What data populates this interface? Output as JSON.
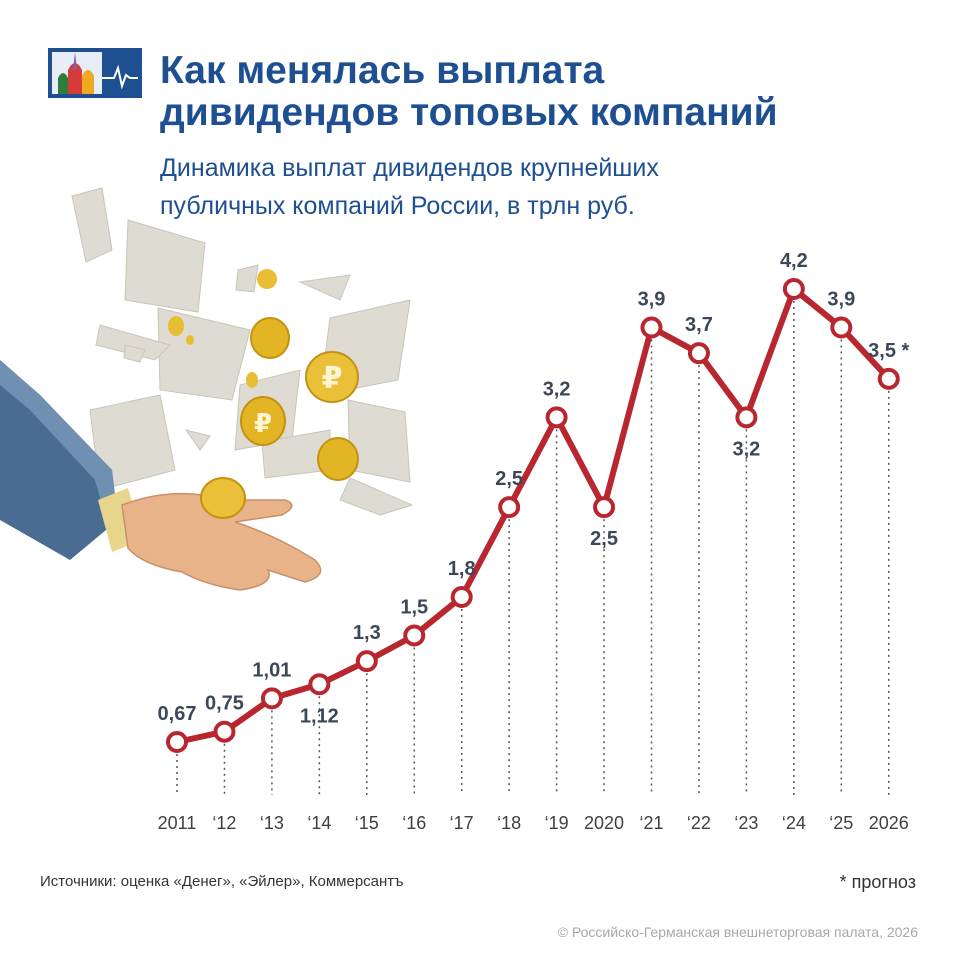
{
  "title": "Как менялась выплата\nдивидендов топовых компаний",
  "subtitle": "Динамика выплат дивидендов крупнейших\nпубличных компаний России, в трлн руб.",
  "source": "Источники: оценка «Денег», «Эйлер», Коммерсантъ",
  "footnote": "* прогноз",
  "copyright": "© Российско-Германская внешнеторговая палата, 2026",
  "colors": {
    "brand_blue": "#1d4f91",
    "line_red": "#b8272f",
    "label_gray": "#3c4858",
    "tick_gray": "#404040"
  },
  "chart_data": {
    "type": "line",
    "categories": [
      "2011",
      "‘12",
      "‘13",
      "‘14",
      "‘15",
      "‘16",
      "‘17",
      "‘18",
      "‘19",
      "2020",
      "‘21",
      "‘22",
      "‘23",
      "‘24",
      "‘25",
      "2026"
    ],
    "values": [
      0.67,
      0.75,
      1.01,
      1.12,
      1.3,
      1.5,
      1.8,
      2.5,
      3.2,
      2.5,
      3.9,
      3.7,
      3.2,
      4.2,
      3.9,
      3.5
    ],
    "data_labels": [
      "0,67",
      "0,75",
      "1,01",
      "1,12",
      "1,3",
      "1,5",
      "1,8",
      "2,5",
      "3,2",
      "2,5",
      "3,9",
      "3,7",
      "3,2",
      "4,2",
      "3,9",
      "3,5 *"
    ],
    "forecast_marker": "*",
    "unit": "трлн руб.",
    "ylim": [
      0,
      4.5
    ],
    "grid": false,
    "legend": "none"
  }
}
